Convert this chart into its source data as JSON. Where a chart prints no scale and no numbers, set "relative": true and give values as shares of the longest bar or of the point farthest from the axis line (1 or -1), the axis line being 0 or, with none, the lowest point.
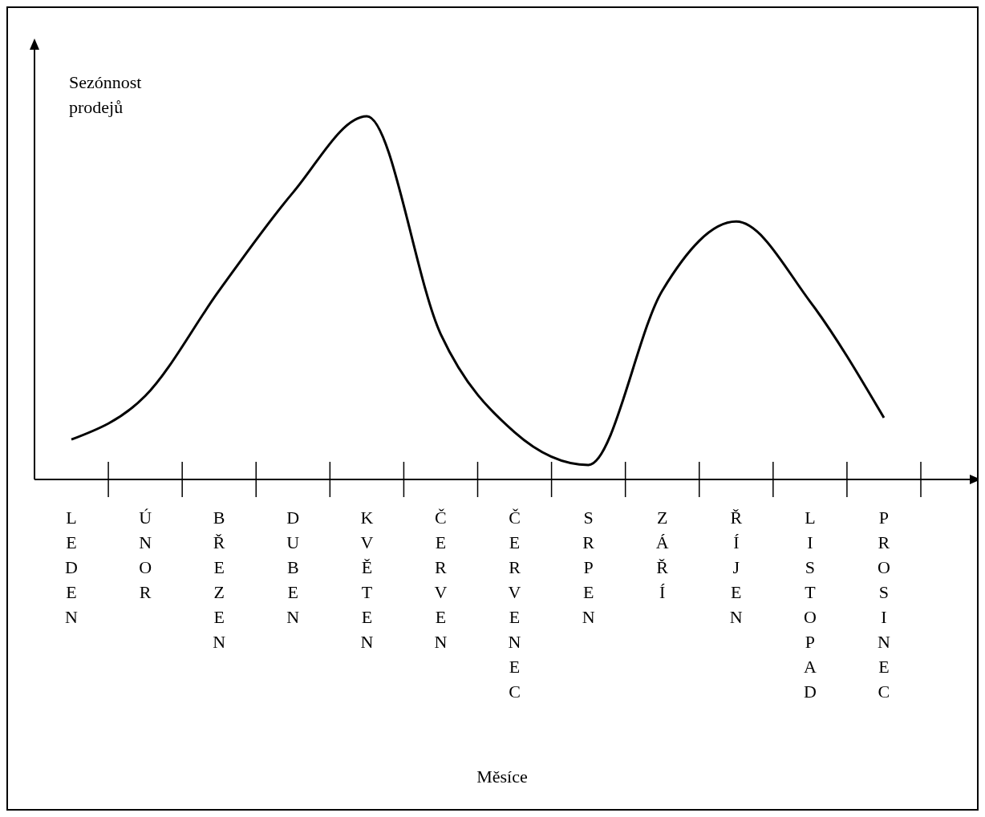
{
  "chart_data": {
    "type": "line",
    "ylabel": "Sezónnost prodejů",
    "xlabel": "Měsíce",
    "relative": true,
    "marker": "none",
    "line_style": "solid",
    "categories": [
      "LEDEN",
      "ÚNOR",
      "BŘEZEN",
      "DUBEN",
      "KVĚTEN",
      "ČERVEN",
      "ČERVENEC",
      "SRPEN",
      "ZÁŘÍ",
      "ŘÍJEN",
      "LISTOPAD",
      "PROSINEC"
    ],
    "series": [
      {
        "color": "#000000",
        "values": [
          0.11,
          0.23,
          0.52,
          0.79,
          1.0,
          0.4,
          0.13,
          0.04,
          0.52,
          0.71,
          0.49,
          0.17
        ]
      }
    ]
  }
}
